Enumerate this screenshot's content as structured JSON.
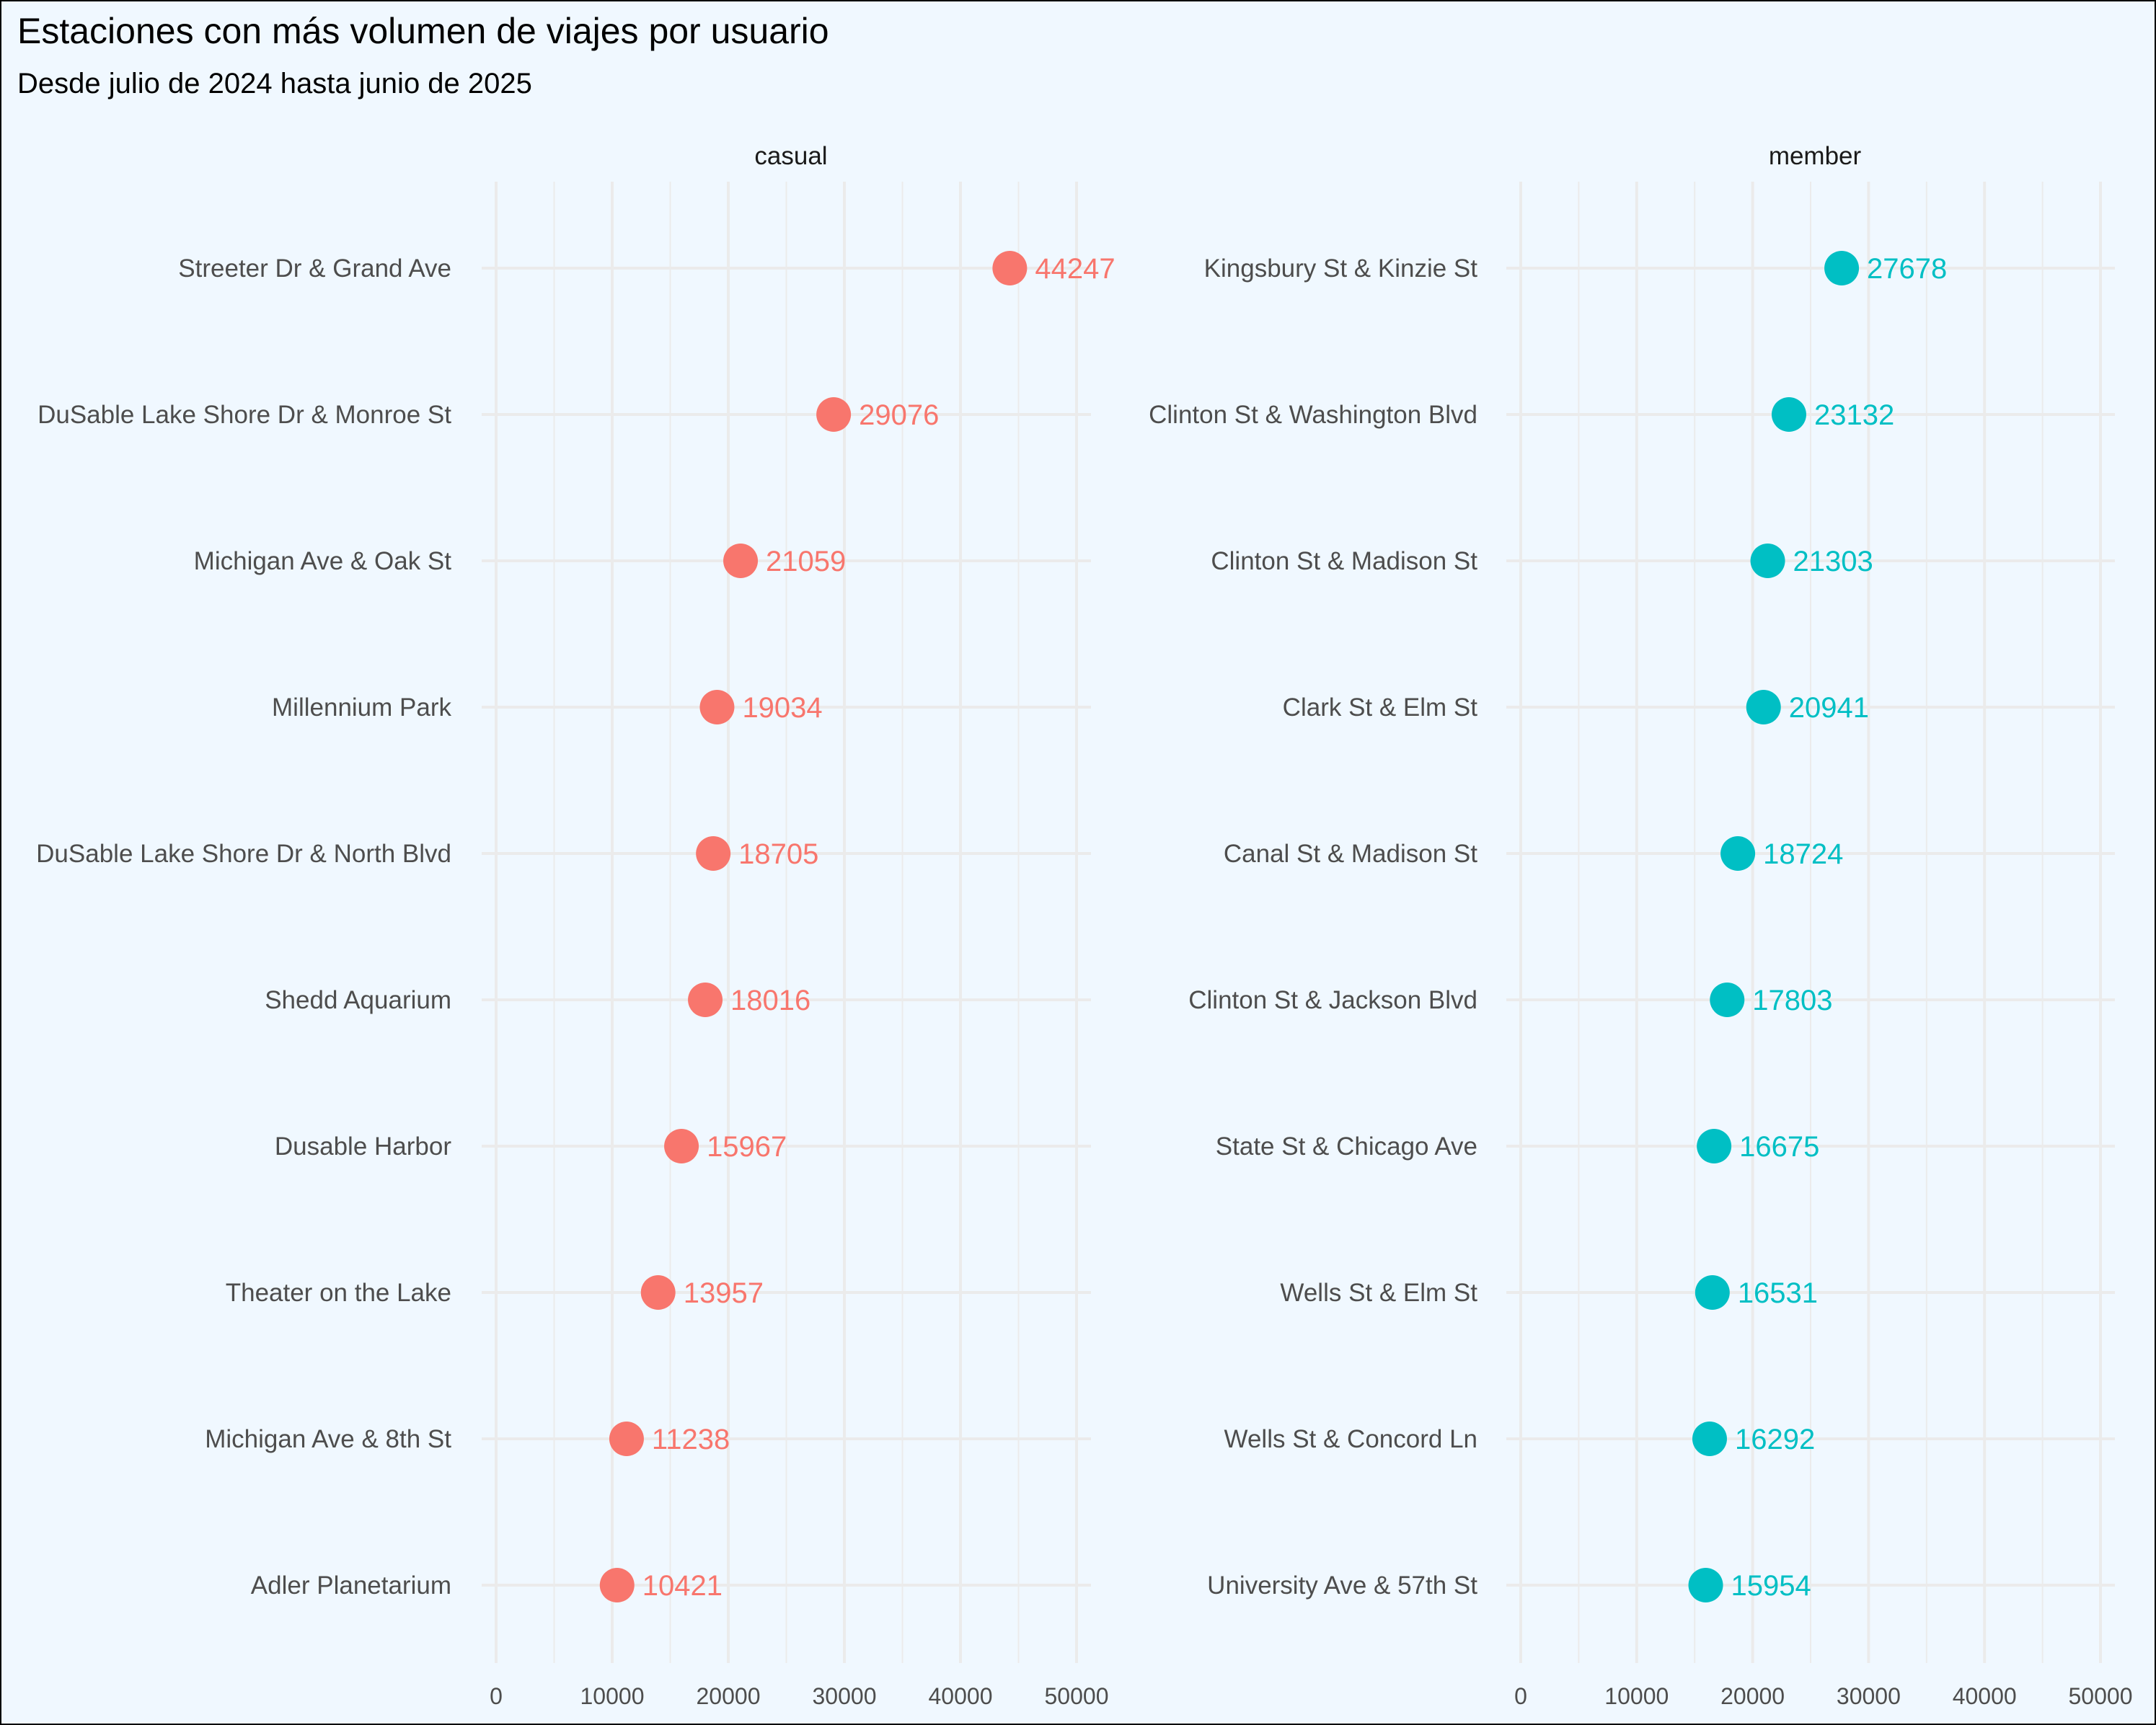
{
  "chart_data": {
    "type": "scatter",
    "title": "Estaciones con más volumen de viajes por usuario",
    "subtitle": "Desde julio de 2024 hasta junio de 2025",
    "xlim": [
      0,
      50000
    ],
    "x_ticks": [
      0,
      10000,
      20000,
      30000,
      40000,
      50000
    ],
    "x_tick_labels": [
      "0",
      "10000",
      "20000",
      "30000",
      "40000",
      "50000"
    ],
    "grid": true,
    "legend": "none",
    "panels": [
      {
        "name": "casual",
        "color": "#f8766d",
        "stations": [
          "Streeter Dr & Grand Ave",
          "DuSable Lake Shore Dr & Monroe St",
          "Michigan Ave & Oak St",
          "Millennium Park",
          "DuSable Lake Shore Dr & North Blvd",
          "Shedd Aquarium",
          "Dusable Harbor",
          "Theater on the Lake",
          "Michigan Ave & 8th St",
          "Adler Planetarium"
        ],
        "values": [
          44247,
          29076,
          21059,
          19034,
          18705,
          18016,
          15967,
          13957,
          11238,
          10421
        ],
        "value_labels": [
          "44247",
          "29076",
          "21059",
          "19034",
          "18705",
          "18016",
          "15967",
          "13957",
          "11238",
          "10421"
        ]
      },
      {
        "name": "member",
        "color": "#00bfc4",
        "stations": [
          "Kingsbury St & Kinzie St",
          "Clinton St & Washington Blvd",
          "Clinton St & Madison St",
          "Clark St & Elm St",
          "Canal St & Madison St",
          "Clinton St & Jackson Blvd",
          "State St & Chicago Ave",
          "Wells St & Elm St",
          "Wells St & Concord Ln",
          "University Ave & 57th St"
        ],
        "values": [
          27678,
          23132,
          21303,
          20941,
          18724,
          17803,
          16675,
          16531,
          16292,
          15954
        ],
        "value_labels": [
          "27678",
          "23132",
          "21303",
          "20941",
          "18724",
          "17803",
          "16675",
          "16531",
          "16292",
          "15954"
        ]
      }
    ]
  }
}
